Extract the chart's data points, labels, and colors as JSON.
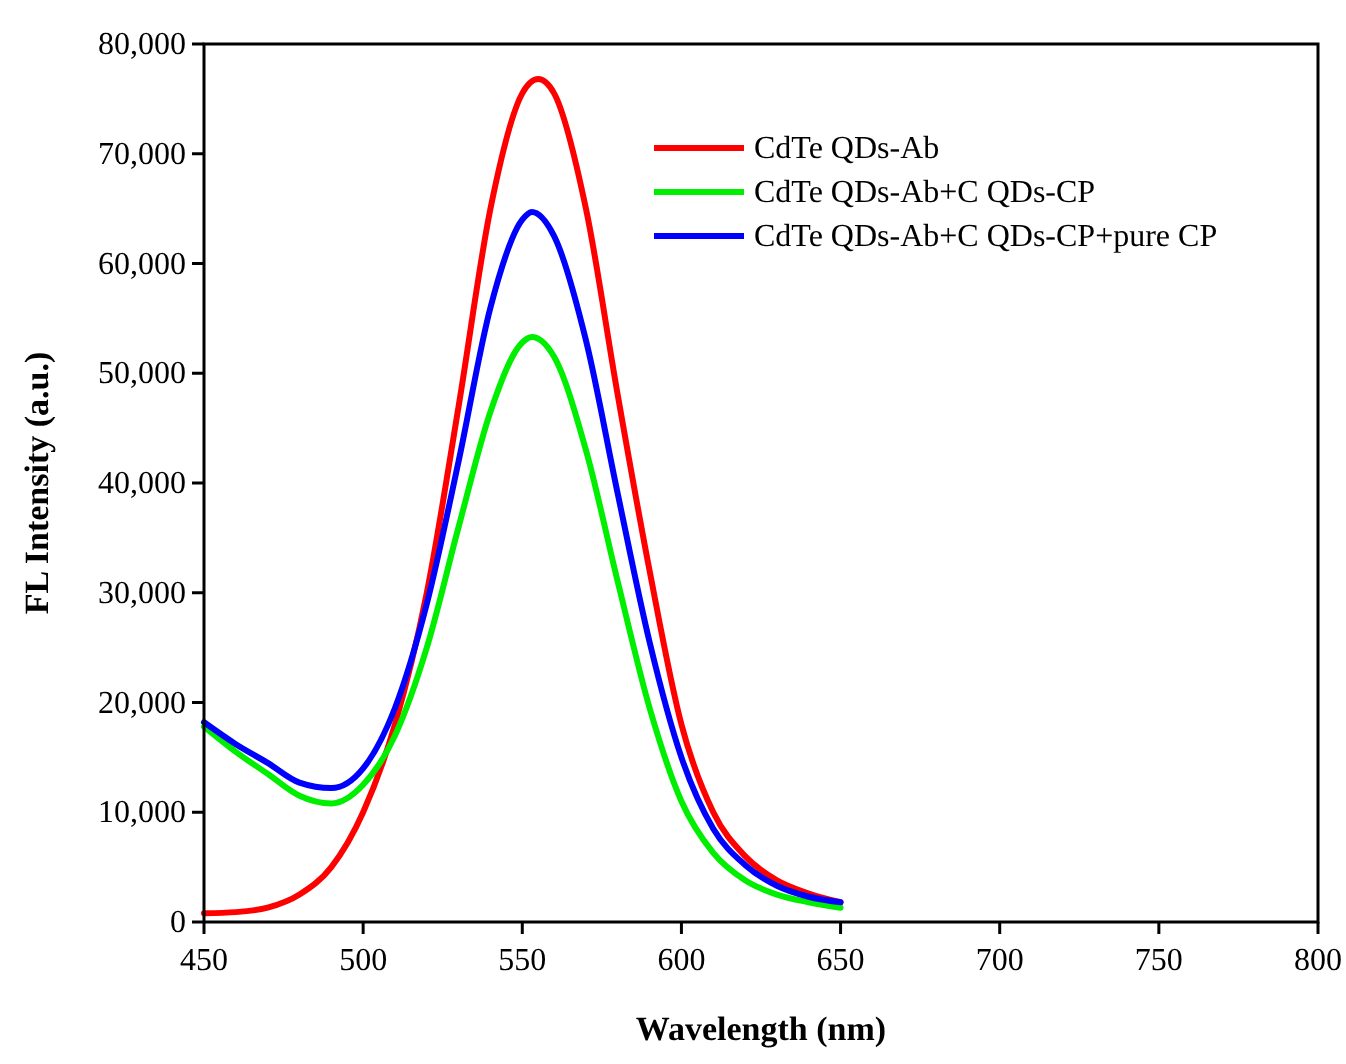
{
  "chart_data": {
    "type": "line",
    "xlabel": "Wavelength (nm)",
    "ylabel": "FL Intensity (a.u.)",
    "xlim": [
      450,
      800
    ],
    "xticks": [
      450,
      500,
      550,
      600,
      650,
      700,
      750,
      800
    ],
    "ylim": [
      0,
      80000
    ],
    "yticks": [
      {
        "value": 0,
        "label": "0"
      },
      {
        "value": 10000,
        "label": "10,000"
      },
      {
        "value": 20000,
        "label": "20,000"
      },
      {
        "value": 30000,
        "label": "30,000"
      },
      {
        "value": 40000,
        "label": "40,000"
      },
      {
        "value": 50000,
        "label": "50,000"
      },
      {
        "value": 60000,
        "label": "60,000"
      },
      {
        "value": 70000,
        "label": "70,000"
      },
      {
        "value": 80000,
        "label": "80,000"
      }
    ],
    "grid": false,
    "legend": "top right",
    "line_style": "solid",
    "series": [
      {
        "name": "CdTe QDs-Ab",
        "color": "#ff0000",
        "x": [
          450,
          460,
          470,
          480,
          490,
          500,
          510,
          520,
          530,
          540,
          550,
          555,
          560,
          570,
          580,
          590,
          600,
          610,
          620,
          630,
          640,
          650
        ],
        "values": [
          800,
          900,
          1300,
          2500,
          5000,
          10000,
          18000,
          30000,
          47000,
          65000,
          75500,
          76800,
          75500,
          65000,
          48000,
          32000,
          18000,
          10000,
          6000,
          3800,
          2600,
          1800
        ]
      },
      {
        "name": "CdTe QDs-Ab+C QDs-CP",
        "color": "#00ee00",
        "x": [
          450,
          460,
          470,
          480,
          490,
          500,
          510,
          520,
          530,
          540,
          550,
          553,
          560,
          570,
          580,
          590,
          600,
          610,
          620,
          630,
          640,
          650
        ],
        "values": [
          17800,
          15500,
          13500,
          11500,
          10800,
          12500,
          17000,
          25000,
          36000,
          46500,
          52800,
          53300,
          51500,
          43000,
          31000,
          19500,
          11000,
          6300,
          3800,
          2500,
          1800,
          1300
        ]
      },
      {
        "name": "CdTe QDs-Ab+C QDs-CP+pure CP",
        "color": "#0000ff",
        "x": [
          450,
          460,
          470,
          480,
          490,
          500,
          510,
          520,
          530,
          540,
          550,
          553,
          560,
          570,
          580,
          590,
          600,
          610,
          620,
          630,
          640,
          650
        ],
        "values": [
          18200,
          16200,
          14500,
          12700,
          12200,
          14000,
          19500,
          29000,
          42000,
          56000,
          64000,
          64700,
          62500,
          53000,
          39000,
          25500,
          15000,
          8500,
          5200,
          3300,
          2300,
          1800
        ]
      }
    ]
  }
}
